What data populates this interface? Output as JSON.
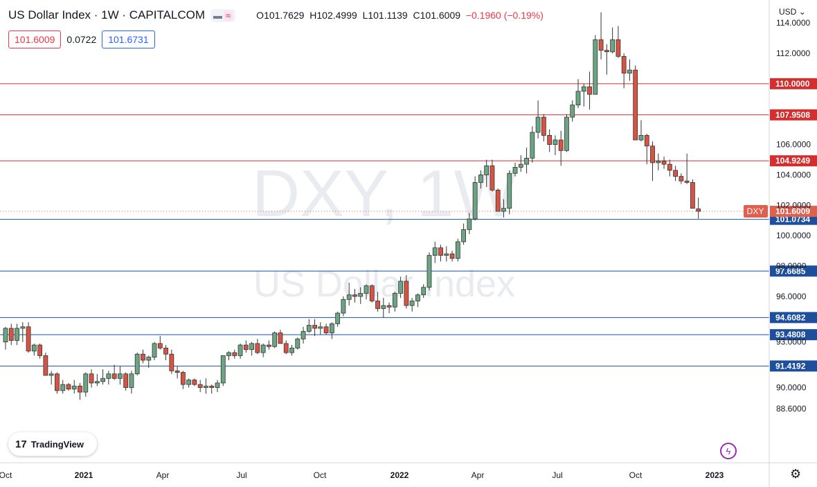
{
  "header": {
    "title": "US Dollar Index · 1W · CAPITALCOM",
    "ohlc": {
      "o_label": "O",
      "o": "101.7629",
      "h_label": "H",
      "h": "102.4999",
      "l_label": "L",
      "l": "101.1139",
      "c_label": "C",
      "c": "101.6009",
      "change": "−0.1960 (−0.19%)"
    },
    "bid": "101.6009",
    "spread": "0.0722",
    "ask": "101.6731",
    "currency": "USD"
  },
  "watermark": {
    "symbol": "DXY, 1W",
    "name": "US Dollar Index"
  },
  "logo_text": "TradingView",
  "colors": {
    "up": "#6ba583",
    "down": "#d75442",
    "wick": "#333333",
    "red_line": "#d32f2f",
    "blue_line": "#1e4f9c",
    "price_label": "#e06050"
  },
  "chart_data": {
    "type": "candlestick",
    "symbol": "DXY",
    "interval": "1W",
    "ylim": [
      87.9,
      114.7
    ],
    "y_ticks": [
      88.6,
      90.0,
      93.0,
      96.0,
      98.0,
      100.0,
      102.0,
      104.0,
      106.0,
      112.0,
      114.0
    ],
    "x_ticks": [
      "Oct",
      "2021",
      "Apr",
      "Jul",
      "Oct",
      "2022",
      "Apr",
      "Jul",
      "Oct",
      "2023"
    ],
    "horizontal_levels": [
      {
        "value": 110.0,
        "label": "110.0000",
        "color": "red"
      },
      {
        "value": 107.9508,
        "label": "107.9508",
        "color": "red"
      },
      {
        "value": 104.9249,
        "label": "104.9249",
        "color": "red"
      },
      {
        "value": 101.0734,
        "label": "101.0734",
        "color": "blue"
      },
      {
        "value": 97.6685,
        "label": "97.6685",
        "color": "blue"
      },
      {
        "value": 94.6082,
        "label": "94.6082",
        "color": "blue"
      },
      {
        "value": 93.4808,
        "label": "93.4808",
        "color": "blue"
      },
      {
        "value": 91.4192,
        "label": "91.4192",
        "color": "blue"
      }
    ],
    "last_price": {
      "value": 101.6009,
      "label": "101.6009",
      "tag": "DXY"
    },
    "candles": [
      {
        "o": 93.0,
        "h": 94.0,
        "l": 92.5,
        "c": 93.9
      },
      {
        "o": 93.9,
        "h": 94.2,
        "l": 92.8,
        "c": 93.1
      },
      {
        "o": 93.1,
        "h": 94.2,
        "l": 92.8,
        "c": 93.9
      },
      {
        "o": 93.9,
        "h": 94.3,
        "l": 93.0,
        "c": 94.0
      },
      {
        "o": 94.0,
        "h": 94.3,
        "l": 92.3,
        "c": 92.4
      },
      {
        "o": 92.4,
        "h": 92.9,
        "l": 92.1,
        "c": 92.8
      },
      {
        "o": 92.8,
        "h": 92.9,
        "l": 91.9,
        "c": 92.1
      },
      {
        "o": 92.1,
        "h": 92.3,
        "l": 90.8,
        "c": 90.8
      },
      {
        "o": 90.8,
        "h": 91.1,
        "l": 90.2,
        "c": 90.9
      },
      {
        "o": 90.9,
        "h": 91.0,
        "l": 89.6,
        "c": 89.8
      },
      {
        "o": 89.8,
        "h": 90.5,
        "l": 89.6,
        "c": 90.2
      },
      {
        "o": 90.2,
        "h": 90.3,
        "l": 89.8,
        "c": 89.9
      },
      {
        "o": 89.9,
        "h": 90.5,
        "l": 89.6,
        "c": 90.1
      },
      {
        "o": 90.1,
        "h": 90.3,
        "l": 89.2,
        "c": 89.7
      },
      {
        "o": 89.7,
        "h": 91.0,
        "l": 89.4,
        "c": 90.9
      },
      {
        "o": 90.9,
        "h": 91.2,
        "l": 90.0,
        "c": 90.3
      },
      {
        "o": 90.3,
        "h": 90.9,
        "l": 90.1,
        "c": 90.4
      },
      {
        "o": 90.4,
        "h": 91.2,
        "l": 90.2,
        "c": 90.6
      },
      {
        "o": 90.6,
        "h": 91.1,
        "l": 90.2,
        "c": 90.9
      },
      {
        "o": 90.9,
        "h": 91.5,
        "l": 90.5,
        "c": 90.6
      },
      {
        "o": 90.6,
        "h": 91.4,
        "l": 90.2,
        "c": 90.9
      },
      {
        "o": 90.9,
        "h": 91.0,
        "l": 89.8,
        "c": 90.0
      },
      {
        "o": 90.0,
        "h": 91.1,
        "l": 89.6,
        "c": 90.9
      },
      {
        "o": 90.9,
        "h": 92.3,
        "l": 90.8,
        "c": 92.2
      },
      {
        "o": 92.2,
        "h": 92.5,
        "l": 91.6,
        "c": 91.8
      },
      {
        "o": 91.8,
        "h": 92.1,
        "l": 91.3,
        "c": 92.0
      },
      {
        "o": 92.0,
        "h": 93.0,
        "l": 91.8,
        "c": 92.9
      },
      {
        "o": 92.9,
        "h": 93.4,
        "l": 92.5,
        "c": 92.6
      },
      {
        "o": 92.6,
        "h": 92.8,
        "l": 91.8,
        "c": 92.2
      },
      {
        "o": 92.2,
        "h": 92.5,
        "l": 90.9,
        "c": 91.1
      },
      {
        "o": 91.1,
        "h": 91.4,
        "l": 90.6,
        "c": 91.0
      },
      {
        "o": 91.0,
        "h": 91.1,
        "l": 89.9,
        "c": 90.2
      },
      {
        "o": 90.2,
        "h": 90.6,
        "l": 90.0,
        "c": 90.5
      },
      {
        "o": 90.5,
        "h": 90.6,
        "l": 90.1,
        "c": 90.2
      },
      {
        "o": 90.2,
        "h": 90.5,
        "l": 89.7,
        "c": 90.0
      },
      {
        "o": 90.0,
        "h": 90.6,
        "l": 89.6,
        "c": 90.1
      },
      {
        "o": 90.1,
        "h": 90.2,
        "l": 89.6,
        "c": 90.0
      },
      {
        "o": 90.0,
        "h": 90.5,
        "l": 89.7,
        "c": 90.3
      },
      {
        "o": 90.3,
        "h": 92.1,
        "l": 90.1,
        "c": 92.1
      },
      {
        "o": 92.1,
        "h": 92.4,
        "l": 91.8,
        "c": 92.3
      },
      {
        "o": 92.3,
        "h": 92.5,
        "l": 91.9,
        "c": 92.1
      },
      {
        "o": 92.1,
        "h": 92.9,
        "l": 91.9,
        "c": 92.8
      },
      {
        "o": 92.8,
        "h": 93.1,
        "l": 92.3,
        "c": 92.5
      },
      {
        "o": 92.5,
        "h": 93.0,
        "l": 92.1,
        "c": 92.9
      },
      {
        "o": 92.9,
        "h": 93.2,
        "l": 92.2,
        "c": 92.3
      },
      {
        "o": 92.3,
        "h": 92.9,
        "l": 92.0,
        "c": 92.8
      },
      {
        "o": 92.8,
        "h": 93.1,
        "l": 92.5,
        "c": 92.7
      },
      {
        "o": 92.7,
        "h": 93.7,
        "l": 92.6,
        "c": 93.6
      },
      {
        "o": 93.6,
        "h": 93.8,
        "l": 92.9,
        "c": 92.9
      },
      {
        "o": 92.9,
        "h": 93.1,
        "l": 92.2,
        "c": 92.3
      },
      {
        "o": 92.3,
        "h": 92.8,
        "l": 92.1,
        "c": 92.6
      },
      {
        "o": 92.6,
        "h": 93.3,
        "l": 92.5,
        "c": 93.2
      },
      {
        "o": 93.2,
        "h": 94.0,
        "l": 92.9,
        "c": 93.7
      },
      {
        "o": 93.7,
        "h": 94.5,
        "l": 93.6,
        "c": 94.1
      },
      {
        "o": 94.1,
        "h": 94.5,
        "l": 93.4,
        "c": 93.9
      },
      {
        "o": 93.9,
        "h": 94.3,
        "l": 93.5,
        "c": 94.0
      },
      {
        "o": 94.0,
        "h": 94.2,
        "l": 93.5,
        "c": 93.6
      },
      {
        "o": 93.6,
        "h": 94.3,
        "l": 93.2,
        "c": 94.2
      },
      {
        "o": 94.2,
        "h": 95.0,
        "l": 94.0,
        "c": 94.9
      },
      {
        "o": 94.9,
        "h": 96.0,
        "l": 94.7,
        "c": 95.8
      },
      {
        "o": 95.8,
        "h": 96.9,
        "l": 95.4,
        "c": 96.1
      },
      {
        "o": 96.1,
        "h": 96.5,
        "l": 95.6,
        "c": 96.0
      },
      {
        "o": 96.0,
        "h": 96.6,
        "l": 95.5,
        "c": 96.2
      },
      {
        "o": 96.2,
        "h": 96.8,
        "l": 95.8,
        "c": 96.7
      },
      {
        "o": 96.7,
        "h": 96.8,
        "l": 95.6,
        "c": 95.7
      },
      {
        "o": 95.7,
        "h": 96.3,
        "l": 95.0,
        "c": 95.2
      },
      {
        "o": 95.2,
        "h": 95.9,
        "l": 94.6,
        "c": 95.4
      },
      {
        "o": 95.4,
        "h": 95.6,
        "l": 94.9,
        "c": 95.3
      },
      {
        "o": 95.3,
        "h": 96.3,
        "l": 95.0,
        "c": 96.2
      },
      {
        "o": 96.2,
        "h": 97.3,
        "l": 95.9,
        "c": 97.0
      },
      {
        "o": 97.0,
        "h": 97.4,
        "l": 95.2,
        "c": 95.4
      },
      {
        "o": 95.4,
        "h": 95.9,
        "l": 95.0,
        "c": 95.7
      },
      {
        "o": 95.7,
        "h": 96.2,
        "l": 95.3,
        "c": 96.1
      },
      {
        "o": 96.1,
        "h": 96.8,
        "l": 95.9,
        "c": 96.6
      },
      {
        "o": 96.6,
        "h": 98.9,
        "l": 96.4,
        "c": 98.7
      },
      {
        "o": 98.7,
        "h": 99.6,
        "l": 98.2,
        "c": 99.2
      },
      {
        "o": 99.2,
        "h": 99.4,
        "l": 98.3,
        "c": 98.7
      },
      {
        "o": 98.7,
        "h": 99.3,
        "l": 98.3,
        "c": 98.8
      },
      {
        "o": 98.8,
        "h": 99.0,
        "l": 98.3,
        "c": 98.5
      },
      {
        "o": 98.5,
        "h": 99.8,
        "l": 98.3,
        "c": 99.6
      },
      {
        "o": 99.6,
        "h": 100.8,
        "l": 99.4,
        "c": 100.4
      },
      {
        "o": 100.4,
        "h": 101.5,
        "l": 100.1,
        "c": 101.1
      },
      {
        "o": 101.1,
        "h": 103.9,
        "l": 101.0,
        "c": 103.5
      },
      {
        "o": 103.5,
        "h": 104.3,
        "l": 103.1,
        "c": 104.0
      },
      {
        "o": 104.0,
        "h": 105.0,
        "l": 103.2,
        "c": 104.6
      },
      {
        "o": 104.6,
        "h": 105.0,
        "l": 102.9,
        "c": 103.0
      },
      {
        "o": 103.0,
        "h": 103.1,
        "l": 101.6,
        "c": 101.6
      },
      {
        "o": 101.6,
        "h": 102.4,
        "l": 101.2,
        "c": 101.8
      },
      {
        "o": 101.8,
        "h": 104.3,
        "l": 101.4,
        "c": 104.1
      },
      {
        "o": 104.1,
        "h": 104.8,
        "l": 103.9,
        "c": 104.5
      },
      {
        "o": 104.5,
        "h": 105.3,
        "l": 104.2,
        "c": 104.7
      },
      {
        "o": 104.7,
        "h": 105.8,
        "l": 104.1,
        "c": 105.1
      },
      {
        "o": 105.1,
        "h": 107.2,
        "l": 104.8,
        "c": 106.8
      },
      {
        "o": 106.8,
        "h": 108.9,
        "l": 106.4,
        "c": 107.8
      },
      {
        "o": 107.8,
        "h": 108.0,
        "l": 106.2,
        "c": 106.6
      },
      {
        "o": 106.6,
        "h": 107.0,
        "l": 105.5,
        "c": 106.0
      },
      {
        "o": 106.0,
        "h": 106.6,
        "l": 105.3,
        "c": 106.3
      },
      {
        "o": 106.3,
        "h": 106.9,
        "l": 104.6,
        "c": 105.6
      },
      {
        "o": 105.6,
        "h": 108.0,
        "l": 105.5,
        "c": 107.8
      },
      {
        "o": 107.8,
        "h": 108.9,
        "l": 107.5,
        "c": 108.6
      },
      {
        "o": 108.6,
        "h": 110.3,
        "l": 108.4,
        "c": 109.5
      },
      {
        "o": 109.5,
        "h": 110.0,
        "l": 108.5,
        "c": 109.8
      },
      {
        "o": 109.8,
        "h": 110.8,
        "l": 108.3,
        "c": 109.3
      },
      {
        "o": 109.3,
        "h": 113.2,
        "l": 109.3,
        "c": 112.9
      },
      {
        "o": 112.9,
        "h": 114.7,
        "l": 111.6,
        "c": 112.2
      },
      {
        "o": 112.2,
        "h": 112.6,
        "l": 110.6,
        "c": 112.1
      },
      {
        "o": 112.1,
        "h": 113.7,
        "l": 112.0,
        "c": 112.9
      },
      {
        "o": 112.9,
        "h": 113.8,
        "l": 111.7,
        "c": 111.8
      },
      {
        "o": 111.8,
        "h": 112.0,
        "l": 109.7,
        "c": 110.7
      },
      {
        "o": 110.7,
        "h": 111.6,
        "l": 110.2,
        "c": 110.9
      },
      {
        "o": 110.9,
        "h": 111.2,
        "l": 106.5,
        "c": 106.3
      },
      {
        "o": 106.3,
        "h": 107.6,
        "l": 106.2,
        "c": 106.6
      },
      {
        "o": 106.6,
        "h": 106.7,
        "l": 104.7,
        "c": 105.9
      },
      {
        "o": 105.9,
        "h": 106.2,
        "l": 103.6,
        "c": 104.8
      },
      {
        "o": 104.8,
        "h": 105.4,
        "l": 104.3,
        "c": 104.9
      },
      {
        "o": 104.9,
        "h": 105.2,
        "l": 104.4,
        "c": 104.7
      },
      {
        "o": 104.7,
        "h": 105.0,
        "l": 103.9,
        "c": 104.3
      },
      {
        "o": 104.3,
        "h": 104.6,
        "l": 103.6,
        "c": 103.9
      },
      {
        "o": 103.9,
        "h": 104.1,
        "l": 103.4,
        "c": 103.6
      },
      {
        "o": 103.6,
        "h": 105.4,
        "l": 103.4,
        "c": 103.5
      },
      {
        "o": 103.5,
        "h": 103.7,
        "l": 101.8,
        "c": 101.8
      },
      {
        "o": 101.7629,
        "h": 102.4999,
        "l": 101.1139,
        "c": 101.6009
      }
    ]
  }
}
